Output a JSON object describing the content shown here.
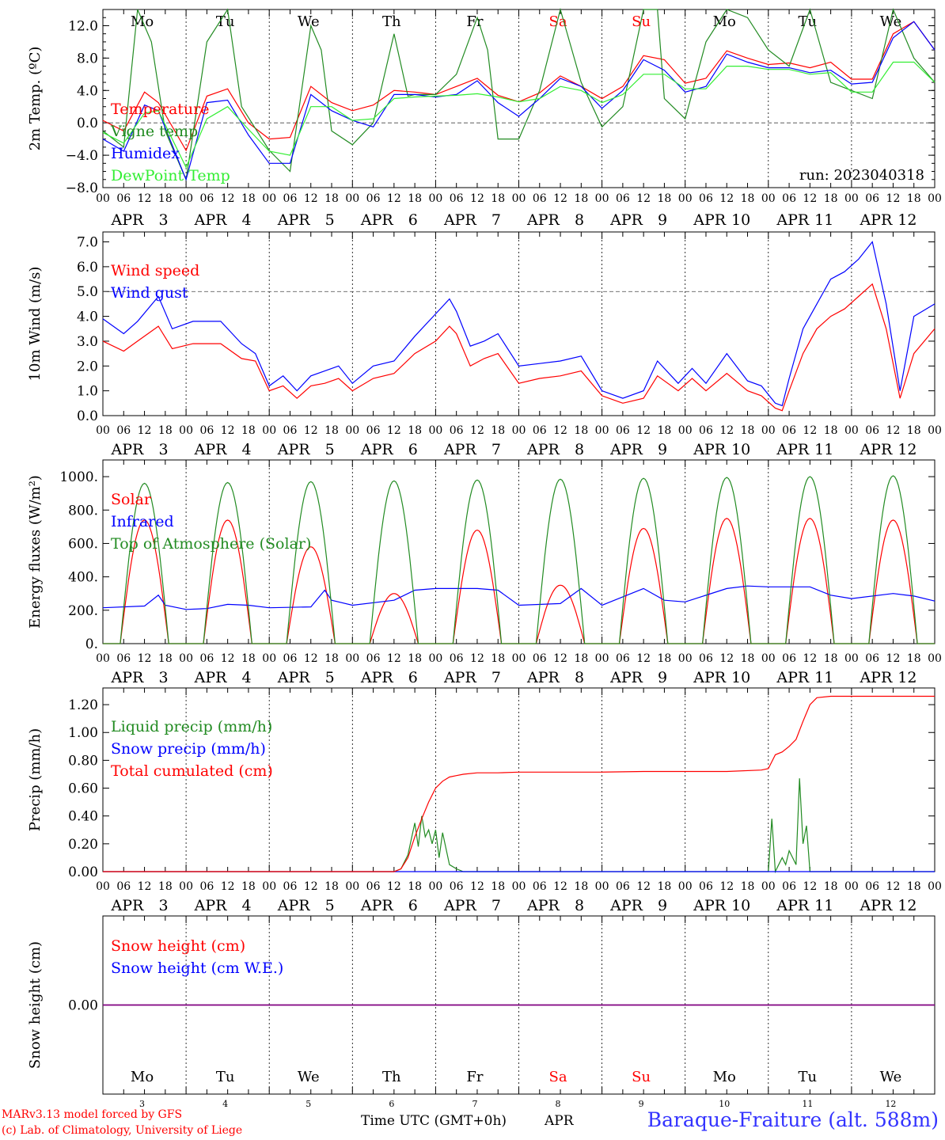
{
  "run_label": "run: 2023040318",
  "days": [
    {
      "abbr": "Mo",
      "date": "3",
      "weekend": false
    },
    {
      "abbr": "Tu",
      "date": "4",
      "weekend": false
    },
    {
      "abbr": "We",
      "date": "5",
      "weekend": false
    },
    {
      "abbr": "Th",
      "date": "6",
      "weekend": false
    },
    {
      "abbr": "Fr",
      "date": "7",
      "weekend": false
    },
    {
      "abbr": "Sa",
      "date": "8",
      "weekend": true
    },
    {
      "abbr": "Su",
      "date": "9",
      "weekend": true
    },
    {
      "abbr": "Mo",
      "date": "10",
      "weekend": false
    },
    {
      "abbr": "Tu",
      "date": "11",
      "weekend": false
    },
    {
      "abbr": "We",
      "date": "12",
      "weekend": false
    }
  ],
  "month": "APR",
  "hour_ticks": [
    "00",
    "06",
    "12",
    "18"
  ],
  "footer": {
    "credit1": "MARv3.13 model forced by GFS",
    "credit2": "(c) Lab. of Climatology, University of Liege",
    "time_axis": "Time UTC (GMT+0h)",
    "month_short": "APR",
    "station": "Baraque-Fraiture (alt. 588m)"
  },
  "colors": {
    "red": "#ff0000",
    "dark_green": "#228b22",
    "blue": "#0000ff",
    "light_green": "#33ee33",
    "purple": "#800080",
    "station_blue": "#3333ff"
  },
  "chart_data": [
    {
      "type": "line",
      "ylabel": "2m Temp. (ºC)",
      "ylim": [
        -8,
        14
      ],
      "yticks": [
        "12.0",
        "8.0",
        "4.0",
        "0.0",
        "−4.0",
        "−8.0"
      ],
      "ytick_values": [
        12,
        8,
        4,
        0,
        -4,
        -8
      ],
      "reference_line": 0,
      "x_units": "hours since Apr 3 00 UTC",
      "series": [
        {
          "name": "Temperature",
          "color": "#ff0000",
          "x": [
            0,
            6,
            12,
            16,
            24,
            30,
            36,
            42,
            48,
            54,
            60,
            66,
            72,
            78,
            84,
            90,
            96,
            102,
            108,
            114,
            120,
            126,
            132,
            138,
            144,
            150,
            156,
            162,
            168,
            174,
            180,
            186,
            192,
            198,
            204,
            210,
            216,
            222,
            228,
            234,
            240
          ],
          "y": [
            0.3,
            -1,
            3.8,
            2.5,
            -3.4,
            3.3,
            4.2,
            0,
            -2,
            -1.8,
            4.5,
            2.5,
            1.5,
            2.2,
            4,
            3.8,
            3.5,
            4.5,
            5.5,
            3.4,
            2.6,
            3.7,
            5.8,
            4.5,
            3.0,
            4.5,
            8.3,
            7.8,
            4.9,
            5.5,
            8.9,
            8,
            7.2,
            7.4,
            6.8,
            7.5,
            5.4,
            5.4,
            11,
            12.5,
            9
          ]
        },
        {
          "name": "Vigne temp",
          "color": "#228b22",
          "x": [
            0,
            6,
            10,
            14,
            18,
            24,
            30,
            36,
            40,
            48,
            54,
            60,
            63,
            66,
            72,
            78,
            84,
            88,
            90,
            96,
            102,
            108,
            111,
            114,
            120,
            126,
            132,
            138,
            144,
            150,
            156,
            160,
            162,
            168,
            174,
            180,
            186,
            192,
            198,
            204,
            210,
            216,
            222,
            228,
            234,
            240
          ],
          "y": [
            -1,
            -3,
            14,
            10,
            -1,
            -7,
            10,
            14,
            2,
            -3.4,
            -6,
            12,
            9,
            -1,
            -2.7,
            0,
            11,
            3.3,
            3.5,
            3.5,
            6,
            13,
            9,
            -2.0,
            -2,
            4,
            14,
            5,
            -0.5,
            2,
            14,
            14,
            3,
            0.5,
            10,
            14,
            13,
            9,
            7,
            14,
            5,
            4,
            3,
            14,
            8,
            5
          ]
        },
        {
          "name": "Humidex",
          "color": "#0000ff",
          "x": [
            0,
            6,
            12,
            16,
            24,
            30,
            36,
            42,
            48,
            54,
            60,
            66,
            72,
            78,
            84,
            90,
            96,
            102,
            108,
            114,
            120,
            126,
            132,
            138,
            144,
            150,
            156,
            162,
            168,
            174,
            180,
            186,
            192,
            198,
            204,
            210,
            216,
            222,
            228,
            234,
            240
          ],
          "y": [
            -2,
            -3.5,
            2.2,
            1.5,
            -7,
            2.5,
            2.8,
            -1.5,
            -5,
            -5,
            3.5,
            1.5,
            0.3,
            -0.5,
            3.5,
            3.5,
            3.2,
            3.5,
            5.2,
            2.5,
            0.8,
            3,
            5.5,
            4.5,
            1.8,
            4,
            7.8,
            6.5,
            3.8,
            4.5,
            8.5,
            7.5,
            6.8,
            6.8,
            6.2,
            6.5,
            4.8,
            5,
            10.5,
            12.5,
            9
          ]
        },
        {
          "name": "DewPoint Temp",
          "color": "#33ee33",
          "x": [
            0,
            6,
            12,
            16,
            24,
            30,
            36,
            42,
            48,
            54,
            60,
            66,
            72,
            78,
            84,
            90,
            96,
            102,
            108,
            114,
            120,
            126,
            132,
            138,
            144,
            150,
            156,
            162,
            168,
            174,
            180,
            186,
            192,
            198,
            204,
            210,
            216,
            222,
            228,
            234,
            240
          ],
          "y": [
            -1.2,
            -2.5,
            1.2,
            1.5,
            -5.5,
            0.5,
            2,
            -0.8,
            -3.5,
            -4,
            2,
            2,
            0.3,
            0.5,
            3,
            3.2,
            3.3,
            3.4,
            3.6,
            3.2,
            2.6,
            3,
            4.5,
            4,
            2.5,
            3.5,
            6,
            6,
            4.2,
            4.2,
            7,
            7,
            6.6,
            6.6,
            6,
            6.2,
            3.8,
            3.8,
            7.5,
            7.5,
            5
          ]
        }
      ]
    },
    {
      "type": "line",
      "ylabel": "10m Wind (m/s)",
      "ylim": [
        0,
        7.4
      ],
      "yticks": [
        "7.0",
        "6.0",
        "5.0",
        "4.0",
        "3.0",
        "2.0",
        "1.0",
        "0.0"
      ],
      "ytick_values": [
        7,
        6,
        5,
        4,
        3,
        2,
        1,
        0
      ],
      "reference_line": 5,
      "x_units": "hours since Apr 3 00 UTC",
      "series": [
        {
          "name": "Wind speed",
          "color": "#ff0000",
          "x": [
            0,
            6,
            10,
            16,
            20,
            26,
            34,
            40,
            44,
            48,
            52,
            56,
            60,
            64,
            68,
            72,
            78,
            84,
            90,
            96,
            100,
            102,
            106,
            110,
            114,
            120,
            126,
            132,
            138,
            144,
            150,
            156,
            160,
            166,
            170,
            174,
            180,
            186,
            190,
            194,
            196,
            198,
            202,
            206,
            210,
            214,
            218,
            222,
            226,
            230,
            234,
            240
          ],
          "y": [
            3,
            2.6,
            3,
            3.6,
            2.7,
            2.9,
            2.9,
            2.3,
            2.2,
            1,
            1.2,
            0.7,
            1.2,
            1.3,
            1.5,
            1.0,
            1.5,
            1.7,
            2.5,
            3.0,
            3.6,
            3.3,
            2.0,
            2.3,
            2.5,
            1.3,
            1.5,
            1.6,
            1.8,
            0.8,
            0.5,
            0.7,
            1.6,
            1.0,
            1.5,
            1.0,
            1.7,
            1.0,
            0.8,
            0.3,
            0.2,
            1.0,
            2.5,
            3.5,
            4.0,
            4.3,
            4.8,
            5.3,
            3.5,
            0.7,
            2.5,
            3.5
          ]
        },
        {
          "name": "Wind gust",
          "color": "#0000ff",
          "x": [
            0,
            6,
            10,
            16,
            20,
            26,
            34,
            40,
            44,
            48,
            52,
            56,
            60,
            64,
            68,
            72,
            78,
            84,
            90,
            96,
            100,
            102,
            106,
            110,
            114,
            120,
            126,
            132,
            138,
            144,
            150,
            156,
            160,
            166,
            170,
            174,
            180,
            186,
            190,
            194,
            196,
            198,
            202,
            206,
            210,
            214,
            218,
            222,
            226,
            230,
            234,
            240
          ],
          "y": [
            3.9,
            3.3,
            3.8,
            4.8,
            3.5,
            3.8,
            3.8,
            2.9,
            2.5,
            1.2,
            1.6,
            1.0,
            1.6,
            1.8,
            2.0,
            1.3,
            2.0,
            2.2,
            3.2,
            4.1,
            4.7,
            4.2,
            2.8,
            3.0,
            3.3,
            2.0,
            2.1,
            2.2,
            2.4,
            1.0,
            0.7,
            1.0,
            2.2,
            1.3,
            1.9,
            1.3,
            2.5,
            1.4,
            1.2,
            0.5,
            0.4,
            1.5,
            3.5,
            4.5,
            5.5,
            5.8,
            6.3,
            7.0,
            4.5,
            1.0,
            4.0,
            4.5
          ]
        }
      ]
    },
    {
      "type": "line",
      "ylabel": "Energy fluxes (W/m²)",
      "ylim": [
        0,
        1100
      ],
      "yticks": [
        "1000.",
        "800.",
        "600.",
        "400.",
        "200.",
        "0."
      ],
      "ytick_values": [
        1000,
        800,
        600,
        400,
        200,
        0
      ],
      "x_units": "hours since Apr 3 00 UTC",
      "series": [
        {
          "name": "Solar",
          "color": "#ff0000",
          "daily_peak": [
            740,
            740,
            580,
            300,
            680,
            350,
            690,
            750,
            750,
            740
          ]
        },
        {
          "name": "Infrared",
          "color": "#0000ff",
          "x": [
            0,
            12,
            16,
            18,
            24,
            30,
            36,
            42,
            48,
            60,
            64,
            66,
            72,
            84,
            90,
            96,
            108,
            114,
            120,
            132,
            138,
            144,
            156,
            162,
            168,
            180,
            186,
            192,
            204,
            210,
            216,
            228,
            234,
            240
          ],
          "y": [
            215,
            225,
            290,
            230,
            205,
            210,
            235,
            230,
            215,
            220,
            320,
            260,
            230,
            260,
            320,
            330,
            330,
            320,
            230,
            240,
            330,
            230,
            330,
            260,
            250,
            330,
            345,
            340,
            340,
            290,
            270,
            300,
            285,
            255
          ]
        },
        {
          "name": "Top of Atmosphere (Solar)",
          "color": "#228b22",
          "daily_peak": [
            960,
            965,
            970,
            975,
            980,
            985,
            990,
            995,
            1000,
            1005
          ]
        }
      ]
    },
    {
      "type": "line",
      "ylabel": "Precip (mm/h)",
      "ylim": [
        0,
        1.32
      ],
      "yticks": [
        "1.20",
        "1.00",
        "0.80",
        "0.60",
        "0.40",
        "0.20",
        "0.00"
      ],
      "ytick_values": [
        1.2,
        1.0,
        0.8,
        0.6,
        0.4,
        0.2,
        0.0
      ],
      "x_units": "hours since Apr 3 00 UTC",
      "series": [
        {
          "name": "Liquid precip (mm/h)",
          "color": "#228b22",
          "x": [
            0,
            84,
            86,
            88,
            90,
            91,
            92,
            93,
            94,
            95,
            96,
            97,
            98,
            100,
            102,
            104,
            108,
            192,
            193,
            194,
            195,
            196,
            197,
            198,
            199,
            200,
            201,
            202,
            203,
            204,
            240
          ],
          "y": [
            0,
            0,
            0.02,
            0.12,
            0.35,
            0.18,
            0.4,
            0.25,
            0.3,
            0.2,
            0.3,
            0.1,
            0.28,
            0.05,
            0.02,
            0,
            0,
            0,
            0.38,
            0,
            0.05,
            0.1,
            0.05,
            0.15,
            0.1,
            0.05,
            0.67,
            0.2,
            0.33,
            0,
            0
          ]
        },
        {
          "name": "Snow precip (mm/h)",
          "color": "#0000ff",
          "x": [
            0,
            240
          ],
          "y": [
            0,
            0
          ]
        },
        {
          "name": "Total cumulated (cm)",
          "color": "#ff0000",
          "x": [
            0,
            84,
            86,
            88,
            90,
            92,
            94,
            96,
            98,
            100,
            102,
            104,
            108,
            114,
            120,
            132,
            144,
            156,
            168,
            180,
            190,
            192,
            194,
            196,
            198,
            200,
            202,
            204,
            206,
            210,
            216,
            240
          ],
          "y": [
            0,
            0,
            0.02,
            0.1,
            0.25,
            0.38,
            0.5,
            0.6,
            0.65,
            0.68,
            0.69,
            0.7,
            0.71,
            0.71,
            0.715,
            0.715,
            0.715,
            0.72,
            0.72,
            0.72,
            0.73,
            0.74,
            0.84,
            0.86,
            0.9,
            0.95,
            1.08,
            1.2,
            1.25,
            1.26,
            1.26,
            1.26
          ]
        }
      ]
    },
    {
      "type": "line",
      "ylabel": "Snow height (cm)",
      "ylim": [
        -1,
        1
      ],
      "yticks": [
        "0.00"
      ],
      "ytick_values": [
        0
      ],
      "x_units": "hours since Apr 3 00 UTC",
      "series": [
        {
          "name": "Snow height (cm)",
          "color": "#ff0000",
          "x": [
            0,
            240
          ],
          "y": [
            0,
            0
          ]
        },
        {
          "name": "Snow height (cm W.E.)",
          "color": "#0000ff",
          "x": [
            0,
            240
          ],
          "y": [
            0,
            0
          ]
        }
      ]
    }
  ]
}
